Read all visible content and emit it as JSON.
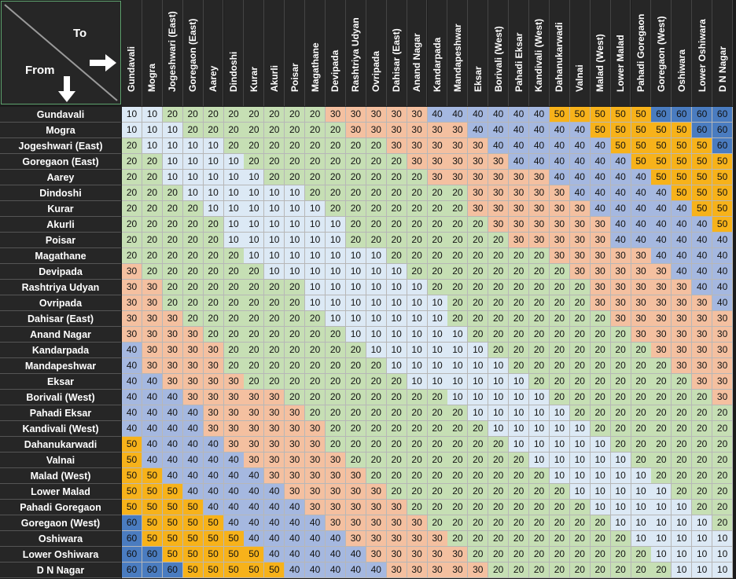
{
  "corner": {
    "to_label": "To",
    "from_label": "From"
  },
  "colors": {
    "10": "#dce9f5",
    "20": "#c6dfb4",
    "30": "#f4c0a0",
    "40": "#a5b8e0",
    "50": "#f7b21a",
    "60": "#4a7cc0"
  },
  "stations": [
    "Gundavali",
    "Mogra",
    "Jogeshwari (East)",
    "Goregaon (East)",
    "Aarey",
    "Dindoshi",
    "Kurar",
    "Akurli",
    "Poisar",
    "Magathane",
    "Devipada",
    "Rashtriya Udyan",
    "Ovripada",
    "Dahisar (East)",
    "Anand Nagar",
    "Kandarpada",
    "Mandapeshwar",
    "Eksar",
    "Borivali (West)",
    "Pahadi Eksar",
    "Kandivali (West)",
    "Dahanukarwadi",
    "Valnai",
    "Malad (West)",
    "Lower Malad",
    "Pahadi Goregaon",
    "Goregaon (West)",
    "Oshiwara",
    "Lower Oshiwara",
    "D N Nagar"
  ],
  "fares": [
    [
      10,
      10,
      20,
      20,
      20,
      20,
      20,
      20,
      20,
      20,
      30,
      30,
      30,
      30,
      30,
      40,
      40,
      40,
      40,
      40,
      40,
      50,
      50,
      50,
      50,
      50,
      60,
      60,
      60,
      60
    ],
    [
      10,
      10,
      10,
      20,
      20,
      20,
      20,
      20,
      20,
      20,
      20,
      30,
      30,
      30,
      30,
      30,
      30,
      40,
      40,
      40,
      40,
      40,
      40,
      50,
      50,
      50,
      50,
      50,
      60,
      60
    ],
    [
      20,
      10,
      10,
      10,
      10,
      20,
      20,
      20,
      20,
      20,
      20,
      20,
      20,
      30,
      30,
      30,
      30,
      30,
      40,
      40,
      40,
      40,
      40,
      40,
      50,
      50,
      50,
      50,
      50,
      60
    ],
    [
      20,
      20,
      10,
      10,
      10,
      10,
      20,
      20,
      20,
      20,
      20,
      20,
      20,
      20,
      30,
      30,
      30,
      30,
      30,
      40,
      40,
      40,
      40,
      40,
      40,
      50,
      50,
      50,
      50,
      50
    ],
    [
      20,
      20,
      10,
      10,
      10,
      10,
      10,
      20,
      20,
      20,
      20,
      20,
      20,
      20,
      20,
      30,
      30,
      30,
      30,
      30,
      30,
      40,
      40,
      40,
      40,
      40,
      50,
      50,
      50,
      50
    ],
    [
      20,
      20,
      20,
      10,
      10,
      10,
      10,
      10,
      10,
      20,
      20,
      20,
      20,
      20,
      20,
      20,
      20,
      30,
      30,
      30,
      30,
      30,
      40,
      40,
      40,
      40,
      40,
      50,
      50,
      50
    ],
    [
      20,
      20,
      20,
      20,
      10,
      10,
      10,
      10,
      10,
      10,
      20,
      20,
      20,
      20,
      20,
      20,
      20,
      30,
      30,
      30,
      30,
      30,
      30,
      40,
      40,
      40,
      40,
      40,
      50,
      50
    ],
    [
      20,
      20,
      20,
      20,
      20,
      10,
      10,
      10,
      10,
      10,
      10,
      20,
      20,
      20,
      20,
      20,
      20,
      20,
      30,
      30,
      30,
      30,
      30,
      30,
      40,
      40,
      40,
      40,
      40,
      50
    ],
    [
      20,
      20,
      20,
      20,
      20,
      10,
      10,
      10,
      10,
      10,
      10,
      20,
      20,
      20,
      20,
      20,
      20,
      20,
      20,
      30,
      30,
      30,
      30,
      30,
      40,
      40,
      40,
      40,
      40,
      40
    ],
    [
      20,
      20,
      20,
      20,
      20,
      20,
      10,
      10,
      10,
      10,
      10,
      10,
      10,
      20,
      20,
      20,
      20,
      20,
      20,
      20,
      20,
      30,
      30,
      30,
      30,
      30,
      40,
      40,
      40,
      40
    ],
    [
      30,
      20,
      20,
      20,
      20,
      20,
      20,
      10,
      10,
      10,
      10,
      10,
      10,
      10,
      20,
      20,
      20,
      20,
      20,
      20,
      20,
      20,
      30,
      30,
      30,
      30,
      30,
      40,
      40,
      40
    ],
    [
      30,
      30,
      20,
      20,
      20,
      20,
      20,
      20,
      20,
      10,
      10,
      10,
      10,
      10,
      10,
      20,
      20,
      20,
      20,
      20,
      20,
      20,
      20,
      30,
      30,
      30,
      30,
      30,
      40,
      40
    ],
    [
      30,
      30,
      20,
      20,
      20,
      20,
      20,
      20,
      20,
      10,
      10,
      10,
      10,
      10,
      10,
      10,
      20,
      20,
      20,
      20,
      20,
      20,
      20,
      30,
      30,
      30,
      30,
      30,
      30,
      40
    ],
    [
      30,
      30,
      30,
      20,
      20,
      20,
      20,
      20,
      20,
      20,
      10,
      10,
      10,
      10,
      10,
      10,
      20,
      20,
      20,
      20,
      20,
      20,
      20,
      20,
      30,
      30,
      30,
      30,
      30,
      30
    ],
    [
      30,
      30,
      30,
      30,
      20,
      20,
      20,
      20,
      20,
      20,
      20,
      10,
      10,
      10,
      10,
      10,
      10,
      20,
      20,
      20,
      20,
      20,
      20,
      20,
      20,
      30,
      30,
      30,
      30,
      30
    ],
    [
      40,
      30,
      30,
      30,
      30,
      20,
      20,
      20,
      20,
      20,
      20,
      20,
      10,
      10,
      10,
      10,
      10,
      10,
      20,
      20,
      20,
      20,
      20,
      20,
      20,
      20,
      30,
      30,
      30,
      30
    ],
    [
      40,
      30,
      30,
      30,
      30,
      20,
      20,
      20,
      20,
      20,
      20,
      20,
      20,
      10,
      10,
      10,
      10,
      10,
      10,
      20,
      20,
      20,
      20,
      20,
      20,
      20,
      20,
      30,
      30,
      30
    ],
    [
      40,
      40,
      30,
      30,
      30,
      30,
      20,
      20,
      20,
      20,
      20,
      20,
      20,
      20,
      10,
      10,
      10,
      10,
      10,
      10,
      20,
      20,
      20,
      20,
      20,
      20,
      20,
      20,
      30,
      30
    ],
    [
      40,
      40,
      40,
      30,
      30,
      30,
      30,
      30,
      20,
      20,
      20,
      20,
      20,
      20,
      20,
      20,
      10,
      10,
      10,
      10,
      10,
      20,
      20,
      20,
      20,
      20,
      20,
      20,
      20,
      30
    ],
    [
      40,
      40,
      40,
      40,
      30,
      30,
      30,
      30,
      30,
      20,
      20,
      20,
      20,
      20,
      20,
      20,
      20,
      10,
      10,
      10,
      10,
      10,
      20,
      20,
      20,
      20,
      20,
      20,
      20,
      20
    ],
    [
      40,
      40,
      40,
      40,
      30,
      30,
      30,
      30,
      30,
      30,
      20,
      20,
      20,
      20,
      20,
      20,
      20,
      20,
      10,
      10,
      10,
      10,
      10,
      20,
      20,
      20,
      20,
      20,
      20,
      20
    ],
    [
      50,
      40,
      40,
      40,
      40,
      30,
      30,
      30,
      30,
      30,
      20,
      20,
      20,
      20,
      20,
      20,
      20,
      20,
      20,
      10,
      10,
      10,
      10,
      10,
      20,
      20,
      20,
      20,
      20,
      20
    ],
    [
      50,
      40,
      40,
      40,
      40,
      40,
      30,
      30,
      30,
      30,
      30,
      20,
      20,
      20,
      20,
      20,
      20,
      20,
      20,
      20,
      10,
      10,
      10,
      10,
      10,
      20,
      20,
      20,
      20,
      20
    ],
    [
      50,
      50,
      40,
      40,
      40,
      40,
      40,
      30,
      30,
      30,
      30,
      30,
      20,
      20,
      20,
      20,
      20,
      20,
      20,
      20,
      20,
      10,
      10,
      10,
      10,
      10,
      20,
      20,
      20,
      20
    ],
    [
      50,
      50,
      50,
      40,
      40,
      40,
      40,
      40,
      30,
      30,
      30,
      30,
      30,
      20,
      20,
      20,
      20,
      20,
      20,
      20,
      20,
      20,
      10,
      10,
      10,
      10,
      10,
      20,
      20,
      20
    ],
    [
      50,
      50,
      50,
      50,
      40,
      40,
      40,
      40,
      40,
      30,
      30,
      30,
      30,
      30,
      20,
      20,
      20,
      20,
      20,
      20,
      20,
      20,
      20,
      10,
      10,
      10,
      10,
      10,
      20,
      20
    ],
    [
      60,
      50,
      50,
      50,
      50,
      40,
      40,
      40,
      40,
      40,
      30,
      30,
      30,
      30,
      30,
      20,
      20,
      20,
      20,
      20,
      20,
      20,
      20,
      20,
      10,
      10,
      10,
      10,
      10,
      20
    ],
    [
      60,
      50,
      50,
      50,
      50,
      50,
      40,
      40,
      40,
      40,
      40,
      30,
      30,
      30,
      30,
      30,
      20,
      20,
      20,
      20,
      20,
      20,
      20,
      20,
      20,
      10,
      10,
      10,
      10,
      10
    ],
    [
      60,
      60,
      50,
      50,
      50,
      50,
      50,
      40,
      40,
      40,
      40,
      40,
      30,
      30,
      30,
      30,
      30,
      20,
      20,
      20,
      20,
      20,
      20,
      20,
      20,
      20,
      10,
      10,
      10,
      10
    ],
    [
      60,
      60,
      60,
      50,
      50,
      50,
      50,
      50,
      40,
      40,
      40,
      40,
      40,
      30,
      30,
      30,
      30,
      30,
      20,
      20,
      20,
      20,
      20,
      20,
      20,
      20,
      20,
      10,
      10,
      10
    ]
  ]
}
